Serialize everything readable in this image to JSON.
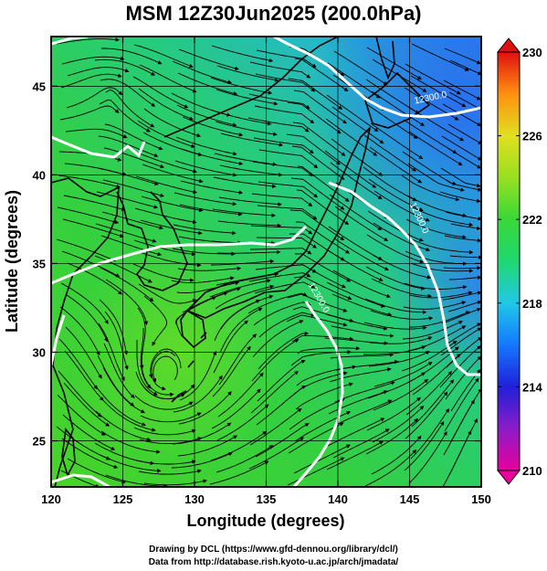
{
  "title": "MSM 12Z30Jun2025 (200.0hPa)",
  "map": {
    "xlabel": "Longitude (degrees)",
    "ylabel": "Latitude  (degrees)",
    "lon_range": [
      120,
      150
    ],
    "lat_range": [
      22.4,
      47.8
    ],
    "lon_ticks": [
      "120",
      "125",
      "130",
      "135",
      "140",
      "145",
      "150"
    ],
    "lon_tick_values": [
      120,
      125,
      130,
      135,
      140,
      145,
      150
    ],
    "lat_ticks": [
      "25",
      "30",
      "35",
      "40",
      "45"
    ],
    "lat_tick_values": [
      25,
      30,
      35,
      40,
      45
    ],
    "grid_lon_step": 5,
    "grid_lat_step": 5,
    "field": "temperature-like shading with streamlines",
    "contour_labels": [
      {
        "text": "12300.0",
        "lon": 146.5,
        "lat": 44.2
      },
      {
        "text": "12300.0",
        "lon": 145.5,
        "lat": 37.5
      },
      {
        "text": "12300.0",
        "lon": 138.5,
        "lat": 33.0
      }
    ],
    "anticyclone_center": {
      "lon": 128,
      "lat": 28.5
    }
  },
  "colorbar": {
    "min": 210,
    "max": 230,
    "tick_labels": [
      "230",
      "226",
      "222",
      "218",
      "214",
      "210"
    ],
    "tick_values": [
      230,
      226,
      222,
      218,
      214,
      210
    ],
    "colors": [
      "#e8009c",
      "#9020c8",
      "#2020d8",
      "#1478ff",
      "#20c8e8",
      "#20d870",
      "#38d838",
      "#80e020",
      "#d8e020",
      "#ffb010",
      "#f85020",
      "#e01010"
    ]
  },
  "footer": {
    "line1": "Drawing by DCL (https://www.gfd-dennou.org/library/dcl/)",
    "line2": "Data from http://database.rish.kyoto-u.ac.jp/arch/jmadata/"
  }
}
